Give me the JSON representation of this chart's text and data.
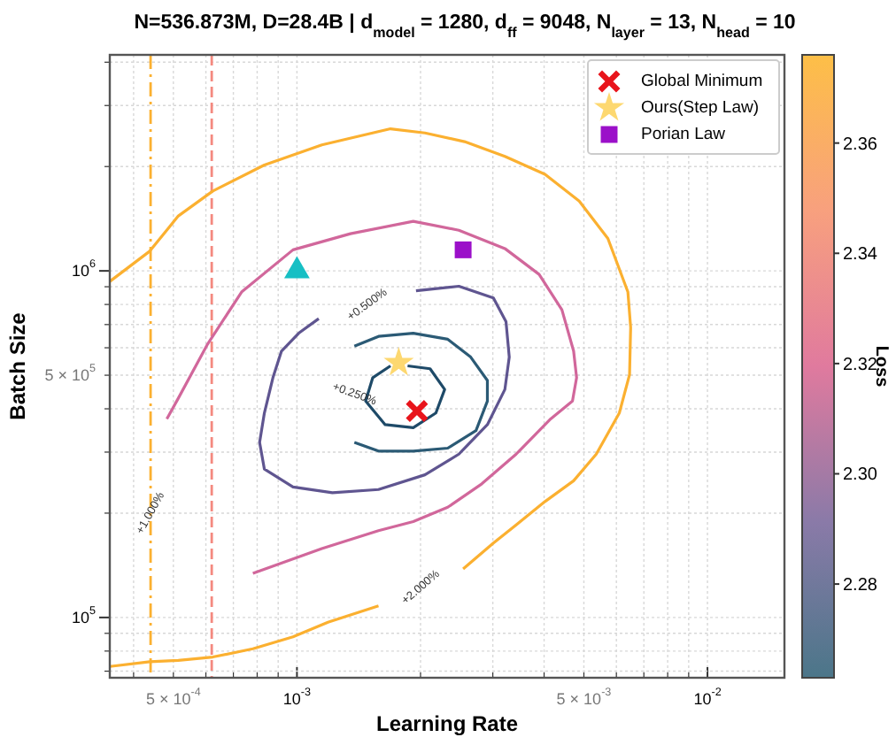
{
  "chart_data": {
    "type": "line",
    "title": "N=536.873M, D=28.4B | d$_{model}$ = 1280, d$_{ff}$ = 9048, N$_{layer}$ = 13, N$_{head}$ = 10",
    "xlabel": "Learning Rate",
    "ylabel": "Batch Size",
    "clabel": "Loss",
    "log": "xy",
    "grid": true,
    "legend": "top right",
    "xlim": [
      0.00035,
      0.0154
    ],
    "ylim": [
      67000,
      4200000
    ],
    "xticks": [
      {
        "value": 0.0004,
        "label": null
      },
      {
        "value": 0.0005,
        "label": "5 × 10$^{-4}$"
      },
      {
        "value": 0.0006,
        "label": null
      },
      {
        "value": 0.0007,
        "label": null
      },
      {
        "value": 0.0008,
        "label": null
      },
      {
        "value": 0.0009,
        "label": null
      },
      {
        "value": 0.001,
        "label": "10$^{-3}$"
      },
      {
        "value": 0.002,
        "label": null
      },
      {
        "value": 0.003,
        "label": null
      },
      {
        "value": 0.004,
        "label": null
      },
      {
        "value": 0.005,
        "label": "5 × 10$^{-3}$"
      },
      {
        "value": 0.006,
        "label": null
      },
      {
        "value": 0.007,
        "label": null
      },
      {
        "value": 0.008,
        "label": null
      },
      {
        "value": 0.009,
        "label": null
      },
      {
        "value": 0.01,
        "label": "10$^{-2}$"
      }
    ],
    "yticks": [
      {
        "value": 70000,
        "label": null
      },
      {
        "value": 80000,
        "label": null
      },
      {
        "value": 90000,
        "label": null
      },
      {
        "value": 100000,
        "label": "10$^{5}$"
      },
      {
        "value": 200000,
        "label": null
      },
      {
        "value": 300000,
        "label": null
      },
      {
        "value": 400000,
        "label": null
      },
      {
        "value": 500000,
        "label": "5 × 10$^{5}$"
      },
      {
        "value": 600000,
        "label": null
      },
      {
        "value": 700000,
        "label": null
      },
      {
        "value": 800000,
        "label": null
      },
      {
        "value": 900000,
        "label": null
      },
      {
        "value": 1000000,
        "label": "10$^{6}$"
      },
      {
        "value": 2000000,
        "label": null
      },
      {
        "value": 3000000,
        "label": null
      },
      {
        "value": 4000000,
        "label": null
      }
    ],
    "clim": [
      2.263,
      2.376
    ],
    "cticks": [
      2.28,
      {
        "value": 2.3,
        "label": "2.30"
      },
      2.32,
      2.34,
      2.36
    ],
    "series": [
      {
        "color": "#fbb030",
        "x": [
          0.00035,
          0.000438,
          0.000514,
          0.000624,
          0.000833,
          0.00115,
          0.00169,
          0.00205,
          0.00256,
          0.00321,
          0.00402,
          0.00487,
          0.00572,
          0.0064,
          0.0065,
          0.00646,
          0.0061,
          0.00536,
          0.00472,
          0.00402,
          0.00342,
          0.00301,
          0.00254
        ],
        "values": [
          932000,
          1140000,
          1440000,
          1700000,
          2020000,
          2310000,
          2570000,
          2500000,
          2360000,
          2140000,
          1900000,
          1590000,
          1240000,
          869000,
          687000,
          502000,
          389000,
          296000,
          248000,
          216000,
          185000,
          164000,
          138000
        ]
      },
      {
        "color": "#fbb030",
        "x": [
          0.00035,
          0.000438,
          0.000514,
          0.000624,
          0.000781,
          0.000978,
          0.00119,
          0.00158
        ],
        "values": [
          72200,
          74500,
          75200,
          76900,
          81200,
          87900,
          96900,
          108000
        ]
      },
      {
        "color": "#d1679b",
        "x": [
          0.000482,
          0.000514,
          0.000604,
          0.000733,
          0.000978,
          0.00135,
          0.00192,
          0.00248,
          0.00321,
          0.00389,
          0.00442,
          0.00472,
          0.0048,
          0.00469,
          0.00415,
          0.00342,
          0.00282,
          0.00233,
          0.00192,
          0.00158,
          0.00115,
          0.000781
        ],
        "values": [
          374000,
          429000,
          611000,
          869000,
          1150000,
          1280000,
          1390000,
          1310000,
          1160000,
          977000,
          772000,
          587000,
          492000,
          421000,
          374000,
          296000,
          243000,
          208000,
          189000,
          178000,
          158000,
          134000
        ]
      },
      {
        "color": "#5f5590",
        "x": [
          0.00195,
          0.00248,
          0.00301,
          0.00323,
          0.00329,
          0.00321,
          0.00291,
          0.00248,
          0.00205,
          0.00158,
          0.00122,
          0.000978,
          0.000833,
          0.000811,
          0.000833,
          0.000874,
          0.000917,
          0.00101,
          0.00113
        ],
        "values": [
          876000,
          903000,
          835000,
          714000,
          564000,
          455000,
          360000,
          296000,
          258000,
          234000,
          229000,
          238000,
          268000,
          320000,
          389000,
          492000,
          587000,
          661000,
          728000
        ]
      },
      {
        "color": "#2b5a75",
        "x": [
          0.00138,
          0.00158,
          0.00192,
          0.00233,
          0.00265,
          0.00291,
          0.00291,
          0.00273,
          0.00233,
          0.00192,
          0.00158,
          0.00138
        ],
        "values": [
          606000,
          647000,
          661000,
          635000,
          564000,
          483000,
          421000,
          346000,
          308000,
          302000,
          302000,
          320000
        ]
      },
      {
        "color": "#1e4a68",
        "x": [
          0.00186,
          0.00211,
          0.00229,
          0.00218,
          0.00192,
          0.00164,
          0.00147,
          0.00153,
          0.00169
        ],
        "values": [
          532000,
          522000,
          455000,
          389000,
          353000,
          360000,
          421000,
          492000,
          532000
        ]
      },
      {
        "type": "scatter",
        "name": "Global Minimum",
        "marker": "cross",
        "color": "#e8141b",
        "x": [
          0.00196
        ],
        "values": [
          394000
        ]
      },
      {
        "type": "scatter",
        "name": "Ours(Step Law)",
        "marker": "star",
        "color": "#fdd870",
        "x": [
          0.00177
        ],
        "values": [
          543000
        ]
      },
      {
        "type": "scatter",
        "marker": "triangle",
        "color": "#17bfc4",
        "x": [
          0.001
        ],
        "values": [
          1000000
        ]
      },
      {
        "type": "scatter",
        "name": "Porian Law",
        "marker": "square",
        "color": "#9b10c9",
        "x": [
          0.00254
        ],
        "values": [
          1150000
        ]
      }
    ],
    "ref_lines": [
      {
        "axis": "x",
        "value": 0.00062,
        "color": "#f4897f",
        "line_style": "dashed"
      },
      {
        "axis": "x",
        "value": 0.00044,
        "color": "#fbb030",
        "line_style": "dotted"
      }
    ],
    "annotations": [
      {
        "text": "+0.500%",
        "x": 0.00113,
        "y": 728000
      },
      {
        "text": "+0.250%",
        "x": 0.00138,
        "y": 320000
      },
      {
        "text": "+1.000%",
        "x": 0.00044,
        "y": 200000
      },
      {
        "text": "+2.000%",
        "x": 0.00254,
        "y": 138000
      }
    ]
  }
}
